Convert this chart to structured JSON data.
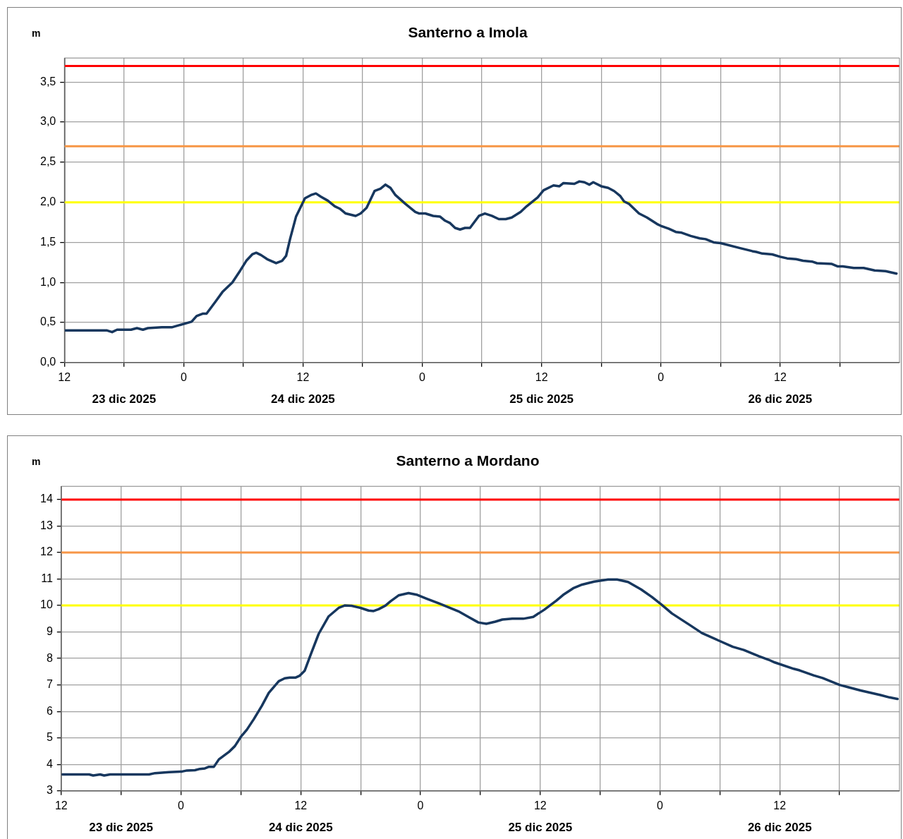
{
  "chart_data": [
    {
      "type": "line",
      "title": "Santerno a Imola",
      "ylabel": "m",
      "x": [
        "2025-12-23T12:06",
        "2025-12-23T16:18",
        "2025-12-23T16:48",
        "2025-12-23T17:18",
        "2025-12-23T18:42",
        "2025-12-23T19:18",
        "2025-12-23T19:54",
        "2025-12-23T20:24",
        "2025-12-23T21:48",
        "2025-12-23T22:48",
        "2025-12-24T00:48",
        "2025-12-24T01:18",
        "2025-12-24T01:54",
        "2025-12-24T02:18",
        "2025-12-24T03:12",
        "2025-12-24T03:54",
        "2025-12-24T04:24",
        "2025-12-24T04:54",
        "2025-12-24T05:42",
        "2025-12-24T06:18",
        "2025-12-24T06:54",
        "2025-12-24T07:18",
        "2025-12-24T07:48",
        "2025-12-24T08:24",
        "2025-12-24T09:18",
        "2025-12-24T09:54",
        "2025-12-24T10:18",
        "2025-12-24T10:42",
        "2025-12-24T11:18",
        "2025-12-24T12:12",
        "2025-12-24T12:48",
        "2025-12-24T13:18",
        "2025-12-24T13:48",
        "2025-12-24T14:30",
        "2025-12-24T15:12",
        "2025-12-24T15:42",
        "2025-12-24T16:18",
        "2025-12-24T17:18",
        "2025-12-24T17:48",
        "2025-12-24T18:24",
        "2025-12-24T19:12",
        "2025-12-24T19:48",
        "2025-12-24T20:18",
        "2025-12-24T20:48",
        "2025-12-24T21:18",
        "2025-12-24T22:18",
        "2025-12-24T23:18",
        "2025-12-24T23:42",
        "2025-12-25T00:18",
        "2025-12-25T01:06",
        "2025-12-25T01:48",
        "2025-12-25T02:18",
        "2025-12-25T02:48",
        "2025-12-25T03:18",
        "2025-12-25T03:48",
        "2025-12-25T04:18",
        "2025-12-25T04:48",
        "2025-12-25T05:42",
        "2025-12-25T06:18",
        "2025-12-25T07:00",
        "2025-12-25T07:42",
        "2025-12-25T08:24",
        "2025-12-25T09:00",
        "2025-12-25T09:54",
        "2025-12-25T10:30",
        "2025-12-25T11:36",
        "2025-12-25T12:12",
        "2025-12-25T13:12",
        "2025-12-25T13:48",
        "2025-12-25T14:12",
        "2025-12-25T15:18",
        "2025-12-25T15:48",
        "2025-12-25T16:18",
        "2025-12-25T16:48",
        "2025-12-25T17:12",
        "2025-12-25T18:00",
        "2025-12-25T18:42",
        "2025-12-25T19:18",
        "2025-12-25T19:54",
        "2025-12-25T20:18",
        "2025-12-25T20:48",
        "2025-12-25T21:48",
        "2025-12-25T22:36",
        "2025-12-25T23:36",
        "2025-12-26T00:06",
        "2025-12-26T00:48",
        "2025-12-26T01:30",
        "2025-12-26T02:06",
        "2025-12-26T03:00",
        "2025-12-26T03:54",
        "2025-12-26T04:30",
        "2025-12-26T05:18",
        "2025-12-26T06:00",
        "2025-12-26T07:54",
        "2025-12-26T09:12",
        "2025-12-26T09:36",
        "2025-12-26T10:12",
        "2025-12-26T11:12",
        "2025-12-26T12:00",
        "2025-12-26T12:42",
        "2025-12-26T13:36",
        "2025-12-26T14:18",
        "2025-12-26T15:12",
        "2025-12-26T15:42",
        "2025-12-26T17:12",
        "2025-12-26T17:48",
        "2025-12-26T18:18",
        "2025-12-26T19:24",
        "2025-12-26T20:24",
        "2025-12-26T21:30",
        "2025-12-26T22:36",
        "2025-12-26T23:42"
      ],
      "series": [
        {
          "color": "#17375e",
          "values": [
            0.4,
            0.4,
            0.38,
            0.41,
            0.41,
            0.43,
            0.41,
            0.43,
            0.44,
            0.44,
            0.51,
            0.58,
            0.61,
            0.61,
            0.76,
            0.88,
            0.94,
            1.0,
            1.15,
            1.27,
            1.35,
            1.37,
            1.34,
            1.29,
            1.24,
            1.27,
            1.33,
            1.54,
            1.82,
            2.05,
            2.09,
            2.11,
            2.07,
            2.02,
            1.95,
            1.92,
            1.86,
            1.83,
            1.86,
            1.93,
            2.14,
            2.17,
            2.22,
            2.18,
            2.09,
            1.98,
            1.88,
            1.86,
            1.86,
            1.83,
            1.82,
            1.77,
            1.74,
            1.68,
            1.66,
            1.68,
            1.68,
            1.83,
            1.86,
            1.83,
            1.79,
            1.79,
            1.81,
            1.88,
            1.95,
            2.06,
            2.15,
            2.21,
            2.2,
            2.24,
            2.23,
            2.26,
            2.25,
            2.22,
            2.25,
            2.2,
            2.18,
            2.14,
            2.08,
            2.01,
            1.98,
            1.86,
            1.81,
            1.73,
            1.7,
            1.67,
            1.63,
            1.62,
            1.58,
            1.55,
            1.54,
            1.5,
            1.49,
            1.43,
            1.39,
            1.38,
            1.36,
            1.35,
            1.32,
            1.3,
            1.29,
            1.27,
            1.26,
            1.24,
            1.23,
            1.2,
            1.2,
            1.18,
            1.18,
            1.15,
            1.14,
            1.11
          ]
        }
      ],
      "xlim": [
        "2025-12-23T12:00",
        "2025-12-27T00:00"
      ],
      "xticks": [
        {
          "value": "2025-12-23T12:00",
          "label": "12"
        },
        {
          "value": "2025-12-23T18:00",
          "label": null
        },
        {
          "value": "2025-12-24T00:00",
          "label": "0"
        },
        {
          "value": "2025-12-24T06:00",
          "label": null
        },
        {
          "value": "2025-12-24T12:00",
          "label": "12"
        },
        {
          "value": "2025-12-24T18:00",
          "label": null
        },
        {
          "value": "2025-12-25T00:00",
          "label": "0"
        },
        {
          "value": "2025-12-25T06:00",
          "label": null
        },
        {
          "value": "2025-12-25T12:00",
          "label": "12"
        },
        {
          "value": "2025-12-25T18:00",
          "label": null
        },
        {
          "value": "2025-12-26T00:00",
          "label": "0"
        },
        {
          "value": "2025-12-26T06:00",
          "label": null
        },
        {
          "value": "2025-12-26T12:00",
          "label": "12"
        },
        {
          "value": "2025-12-26T18:00",
          "label": null
        }
      ],
      "ylim": [
        0,
        3.8
      ],
      "yticks": [
        {
          "value": 0,
          "label": "0,0"
        },
        {
          "value": 0.5,
          "label": "0,5"
        },
        {
          "value": 1,
          "label": "1,0"
        },
        {
          "value": 1.5,
          "label": "1,5"
        },
        {
          "value": 2,
          "label": "2,0"
        },
        {
          "value": 2.5,
          "label": "2,5"
        },
        {
          "value": 3,
          "label": "3,0"
        },
        {
          "value": 3.5,
          "label": "3,5"
        }
      ],
      "ref_lines": [
        {
          "axis": "y",
          "value": 3.7,
          "color": "#ff0000"
        },
        {
          "axis": "y",
          "value": 2.7,
          "color": "#f79646"
        },
        {
          "axis": "y",
          "value": 2.0,
          "color": "#ffff00"
        }
      ],
      "annotations": [
        "23 dic 2025",
        "24 dic 2025",
        "25 dic 2025",
        "26 dic 2025"
      ],
      "grid": true,
      "legend": false,
      "marker": "none",
      "line_style": "solid"
    },
    {
      "type": "line",
      "title": "Santerno a Mordano",
      "ylabel": "m",
      "x": [
        "2025-12-23T12:06",
        "2025-12-23T14:48",
        "2025-12-23T15:12",
        "2025-12-23T15:54",
        "2025-12-23T16:18",
        "2025-12-23T16:54",
        "2025-12-23T20:48",
        "2025-12-23T21:24",
        "2025-12-23T22:48",
        "2025-12-24T00:06",
        "2025-12-24T00:36",
        "2025-12-24T01:24",
        "2025-12-24T01:54",
        "2025-12-24T02:24",
        "2025-12-24T02:48",
        "2025-12-24T03:18",
        "2025-12-24T03:48",
        "2025-12-24T04:48",
        "2025-12-24T05:24",
        "2025-12-24T06:00",
        "2025-12-24T06:36",
        "2025-12-24T07:18",
        "2025-12-24T08:06",
        "2025-12-24T08:48",
        "2025-12-24T09:48",
        "2025-12-24T10:24",
        "2025-12-24T10:54",
        "2025-12-24T11:30",
        "2025-12-24T11:54",
        "2025-12-24T12:24",
        "2025-12-24T13:00",
        "2025-12-24T13:48",
        "2025-12-24T14:48",
        "2025-12-24T15:48",
        "2025-12-24T16:24",
        "2025-12-24T17:06",
        "2025-12-24T18:00",
        "2025-12-24T18:48",
        "2025-12-24T19:18",
        "2025-12-24T19:48",
        "2025-12-24T20:30",
        "2025-12-24T21:00",
        "2025-12-24T21:48",
        "2025-12-24T22:48",
        "2025-12-24T23:36",
        "2025-12-25T00:36",
        "2025-12-25T01:54",
        "2025-12-25T02:54",
        "2025-12-25T03:48",
        "2025-12-25T04:48",
        "2025-12-25T05:48",
        "2025-12-25T06:36",
        "2025-12-25T07:30",
        "2025-12-25T08:12",
        "2025-12-25T09:12",
        "2025-12-25T10:18",
        "2025-12-25T11:18",
        "2025-12-25T12:24",
        "2025-12-25T13:36",
        "2025-12-25T14:18",
        "2025-12-25T15:18",
        "2025-12-25T16:12",
        "2025-12-25T17:24",
        "2025-12-25T18:48",
        "2025-12-25T19:42",
        "2025-12-25T20:48",
        "2025-12-25T22:06",
        "2025-12-25T23:12",
        "2025-12-26T00:12",
        "2025-12-26T01:12",
        "2025-12-26T03:00",
        "2025-12-26T04:12",
        "2025-12-26T05:48",
        "2025-12-26T07:18",
        "2025-12-26T08:24",
        "2025-12-26T09:54",
        "2025-12-26T10:54",
        "2025-12-26T11:30",
        "2025-12-26T13:24",
        "2025-12-26T14:00",
        "2025-12-26T15:24",
        "2025-12-26T16:18",
        "2025-12-26T18:00",
        "2025-12-26T18:54",
        "2025-12-26T20:06",
        "2025-12-26T22:06",
        "2025-12-26T23:00",
        "2025-12-26T23:48"
      ],
      "series": [
        {
          "color": "#17375e",
          "values": [
            3.62,
            3.62,
            3.58,
            3.62,
            3.58,
            3.62,
            3.62,
            3.67,
            3.71,
            3.73,
            3.77,
            3.78,
            3.83,
            3.85,
            3.91,
            3.91,
            4.19,
            4.47,
            4.69,
            5.04,
            5.31,
            5.71,
            6.21,
            6.7,
            7.14,
            7.25,
            7.28,
            7.28,
            7.35,
            7.54,
            8.15,
            8.93,
            9.59,
            9.91,
            10.0,
            9.99,
            9.91,
            9.81,
            9.79,
            9.86,
            10.0,
            10.16,
            10.38,
            10.47,
            10.41,
            10.26,
            10.07,
            9.92,
            9.78,
            9.57,
            9.36,
            9.31,
            9.39,
            9.47,
            9.5,
            9.5,
            9.57,
            9.84,
            10.18,
            10.4,
            10.65,
            10.79,
            10.9,
            10.98,
            10.98,
            10.89,
            10.61,
            10.32,
            10.02,
            9.7,
            9.26,
            8.96,
            8.69,
            8.44,
            8.32,
            8.09,
            7.95,
            7.85,
            7.61,
            7.55,
            7.36,
            7.26,
            7.0,
            6.91,
            6.79,
            6.62,
            6.53,
            6.47
          ]
        }
      ],
      "xlim": [
        "2025-12-23T12:00",
        "2025-12-27T00:00"
      ],
      "xticks": [
        {
          "value": "2025-12-23T12:00",
          "label": "12"
        },
        {
          "value": "2025-12-23T18:00",
          "label": null
        },
        {
          "value": "2025-12-24T00:00",
          "label": "0"
        },
        {
          "value": "2025-12-24T06:00",
          "label": null
        },
        {
          "value": "2025-12-24T12:00",
          "label": "12"
        },
        {
          "value": "2025-12-24T18:00",
          "label": null
        },
        {
          "value": "2025-12-25T00:00",
          "label": "0"
        },
        {
          "value": "2025-12-25T06:00",
          "label": null
        },
        {
          "value": "2025-12-25T12:00",
          "label": "12"
        },
        {
          "value": "2025-12-25T18:00",
          "label": null
        },
        {
          "value": "2025-12-26T00:00",
          "label": "0"
        },
        {
          "value": "2025-12-26T06:00",
          "label": null
        },
        {
          "value": "2025-12-26T12:00",
          "label": "12"
        },
        {
          "value": "2025-12-26T18:00",
          "label": null
        }
      ],
      "ylim": [
        3,
        14.5
      ],
      "yticks": [
        3,
        4,
        5,
        6,
        7,
        8,
        9,
        10,
        11,
        12,
        13,
        14
      ],
      "ref_lines": [
        {
          "axis": "y",
          "value": 14,
          "color": "#ff0000"
        },
        {
          "axis": "y",
          "value": 12,
          "color": "#f79646"
        },
        {
          "axis": "y",
          "value": 10,
          "color": "#ffff00"
        }
      ],
      "annotations": [
        "23 dic 2025",
        "24 dic 2025",
        "25 dic 2025",
        "26 dic 2025"
      ],
      "grid": true,
      "legend": false,
      "marker": "none",
      "line_style": "solid"
    }
  ]
}
